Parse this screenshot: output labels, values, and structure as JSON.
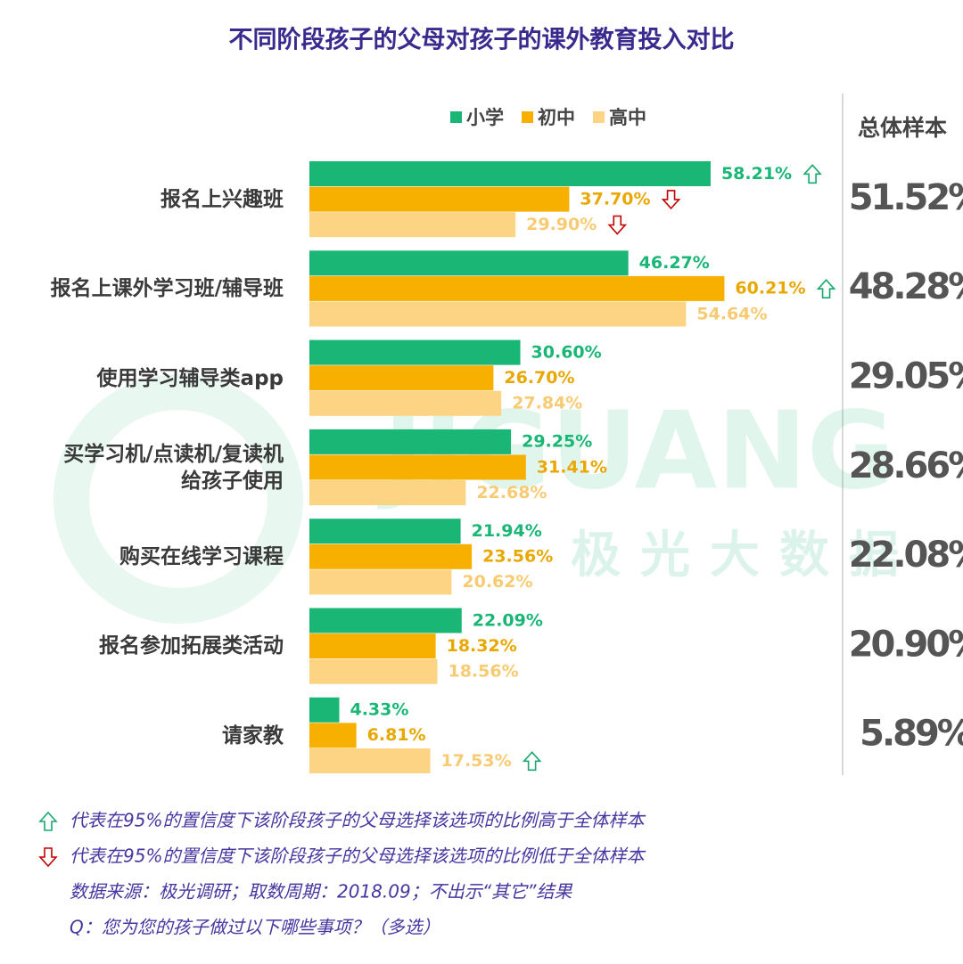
{
  "chart_data": {
    "type": "bar",
    "orientation": "horizontal",
    "title": "不同阶段孩子的父母对孩子的课外教育投入对比",
    "categories": [
      "报名上兴趣班",
      "报名上课外学习班/辅导班",
      "使用学习辅导类app",
      "买学习机/点读机/复读机\n给孩子使用",
      "购买在线学习课程",
      "报名参加拓展类活动",
      "请家教"
    ],
    "series": [
      {
        "name": "小学",
        "color": "#19b676",
        "label_color": "#19b676",
        "values": [
          58.21,
          46.27,
          30.6,
          29.25,
          21.94,
          22.09,
          4.33
        ],
        "value_labels": [
          "58.21%",
          "46.27%",
          "30.60%",
          "29.25%",
          "21.94%",
          "22.09%",
          "4.33%"
        ],
        "significance": [
          "up",
          null,
          null,
          null,
          null,
          null,
          null
        ]
      },
      {
        "name": "初中",
        "color": "#f7b000",
        "label_color": "#e9a800",
        "values": [
          37.7,
          60.21,
          26.7,
          31.41,
          23.56,
          18.32,
          6.81
        ],
        "value_labels": [
          "37.70%",
          "60.21%",
          "26.70%",
          "31.41%",
          "23.56%",
          "18.32%",
          "6.81%"
        ],
        "significance": [
          "down",
          "up",
          null,
          null,
          null,
          null,
          null
        ]
      },
      {
        "name": "高中",
        "color": "#fdd484",
        "label_color": "#f8cb72",
        "values": [
          29.9,
          54.64,
          27.84,
          22.68,
          20.62,
          18.56,
          17.53
        ],
        "value_labels": [
          "29.90%",
          "54.64%",
          "27.84%",
          "22.68%",
          "20.62%",
          "18.56%",
          "17.53%"
        ],
        "significance": [
          "down",
          null,
          null,
          null,
          null,
          null,
          "up"
        ]
      }
    ],
    "overall": {
      "title": "总体样本",
      "values": [
        51.52,
        48.28,
        29.05,
        28.66,
        22.08,
        20.9,
        5.89
      ],
      "value_labels": [
        "51.52%",
        "48.28%",
        "29.05%",
        "28.66%",
        "22.08%",
        "20.90%",
        "5.89%"
      ]
    },
    "legend": "top",
    "watermark": {
      "text": "JIGUANG",
      "subtext": "极光大数据"
    },
    "footnotes": [
      {
        "marker": "up",
        "text": "代表在95%的置信度下该阶段孩子的父母选择该选项的比例高于全体样本"
      },
      {
        "marker": "down",
        "text": "代表在95%的置信度下该阶段孩子的父母选择该选项的比例低于全体样本"
      },
      {
        "marker": null,
        "text": "数据来源：极光调研；取数周期：2018.09；不出示“其它”结果"
      },
      {
        "marker": null,
        "text": "Q：您为您的孩子做过以下哪些事项？（多选）"
      }
    ]
  }
}
